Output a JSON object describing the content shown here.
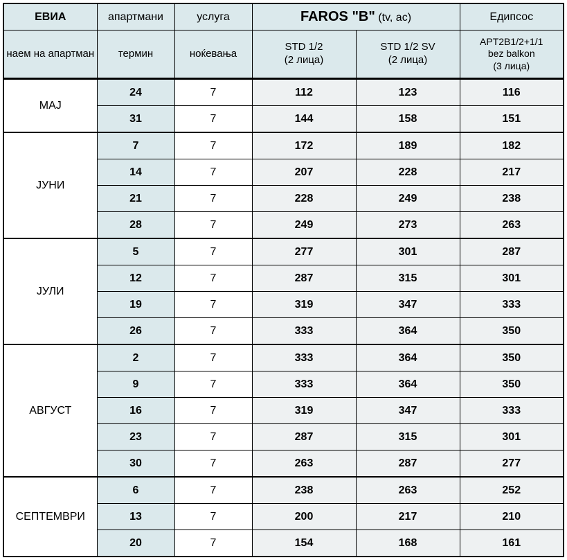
{
  "header": {
    "evia": "ЕВИА",
    "apartments": "апартмани",
    "service": "услуга",
    "faros_title": "FAROS \"B\"",
    "faros_sub": "(tv, ac)",
    "edipsos": "Едипсос",
    "rent": "наем на апартман",
    "termin": "термин",
    "nights": "ноќевања",
    "std12": "STD 1/2",
    "std12_sub": "(2 лица)",
    "std12sv": "STD 1/2 SV",
    "std12sv_sub": "(2 лица)",
    "apt": "APT2B1/2+1/1",
    "apt_sub1": "bez balkon",
    "apt_sub2": "(3 лица)"
  },
  "colors": {
    "header_bg": "#dbe9ec",
    "termin_bg": "#dbe9ec",
    "price_bg": "#eef1f2",
    "border": "#000000"
  },
  "months": [
    {
      "name": "МАЈ",
      "rows": [
        {
          "t": "24",
          "n": "7",
          "p": [
            "112",
            "123",
            "116"
          ]
        },
        {
          "t": "31",
          "n": "7",
          "p": [
            "144",
            "158",
            "151"
          ]
        }
      ]
    },
    {
      "name": "ЈУНИ",
      "rows": [
        {
          "t": "7",
          "n": "7",
          "p": [
            "172",
            "189",
            "182"
          ]
        },
        {
          "t": "14",
          "n": "7",
          "p": [
            "207",
            "228",
            "217"
          ]
        },
        {
          "t": "21",
          "n": "7",
          "p": [
            "228",
            "249",
            "238"
          ]
        },
        {
          "t": "28",
          "n": "7",
          "p": [
            "249",
            "273",
            "263"
          ]
        }
      ]
    },
    {
      "name": "ЈУЛИ",
      "rows": [
        {
          "t": "5",
          "n": "7",
          "p": [
            "277",
            "301",
            "287"
          ]
        },
        {
          "t": "12",
          "n": "7",
          "p": [
            "287",
            "315",
            "301"
          ]
        },
        {
          "t": "19",
          "n": "7",
          "p": [
            "319",
            "347",
            "333"
          ]
        },
        {
          "t": "26",
          "n": "7",
          "p": [
            "333",
            "364",
            "350"
          ]
        }
      ]
    },
    {
      "name": "АВГУСТ",
      "rows": [
        {
          "t": "2",
          "n": "7",
          "p": [
            "333",
            "364",
            "350"
          ]
        },
        {
          "t": "9",
          "n": "7",
          "p": [
            "333",
            "364",
            "350"
          ]
        },
        {
          "t": "16",
          "n": "7",
          "p": [
            "319",
            "347",
            "333"
          ]
        },
        {
          "t": "23",
          "n": "7",
          "p": [
            "287",
            "315",
            "301"
          ]
        },
        {
          "t": "30",
          "n": "7",
          "p": [
            "263",
            "287",
            "277"
          ]
        }
      ]
    },
    {
      "name": "СЕПТЕМВРИ",
      "rows": [
        {
          "t": "6",
          "n": "7",
          "p": [
            "238",
            "263",
            "252"
          ]
        },
        {
          "t": "13",
          "n": "7",
          "p": [
            "200",
            "217",
            "210"
          ]
        },
        {
          "t": "20",
          "n": "7",
          "p": [
            "154",
            "168",
            "161"
          ]
        }
      ]
    }
  ]
}
